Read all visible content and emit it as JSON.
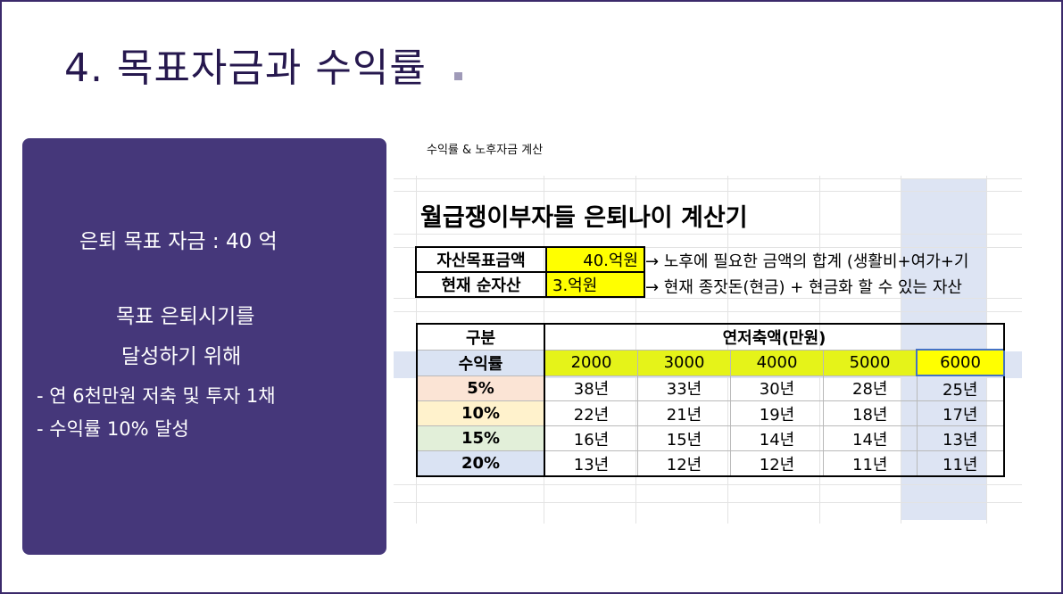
{
  "slide": {
    "title": "4. 목표자금과 수익률"
  },
  "panel": {
    "line1": "은퇴 목표 자금 : 40 억",
    "line2": "목표 은퇴시기를",
    "line3": "달성하기 위해",
    "line4": "- 연 6천만원 저축 및 투자 1채",
    "line5": "- 수익률 10% 달성",
    "color": "#45377a"
  },
  "sheet": {
    "caption": "수익률 & 노후자금 계산",
    "title": "월급쟁이부자들 은퇴나이 계산기",
    "asset_goal_label": "자산목표금액",
    "asset_goal_value": "40.억원",
    "asset_goal_note": "→ 노후에 필요한 금액의 합계 (생활비+여가+기",
    "net_asset_label": "현재 순자산",
    "net_asset_value": "3.억원",
    "net_asset_note": "→ 현재 종잣돈(현금) + 현금화 할 수 있는 자산",
    "table": {
      "corner_label": "구분",
      "group_header": "연저축액(만원)",
      "rate_header": "수익률",
      "savings": [
        "2000",
        "3000",
        "4000",
        "5000",
        "6000"
      ],
      "rows": [
        {
          "rate": "5%",
          "color": "#fbe4d5",
          "years": [
            "38년",
            "33년",
            "30년",
            "28년",
            "25년"
          ]
        },
        {
          "rate": "10%",
          "color": "#fff2cc",
          "years": [
            "22년",
            "21년",
            "19년",
            "18년",
            "17년"
          ]
        },
        {
          "rate": "15%",
          "color": "#e2efd9",
          "years": [
            "16년",
            "15년",
            "14년",
            "14년",
            "13년"
          ]
        },
        {
          "rate": "20%",
          "color": "#dae3f3",
          "years": [
            "13년",
            "12년",
            "12년",
            "11년",
            "11년"
          ]
        }
      ],
      "highlight_color": "#e5f319",
      "selected_color": "#ffff00"
    }
  }
}
